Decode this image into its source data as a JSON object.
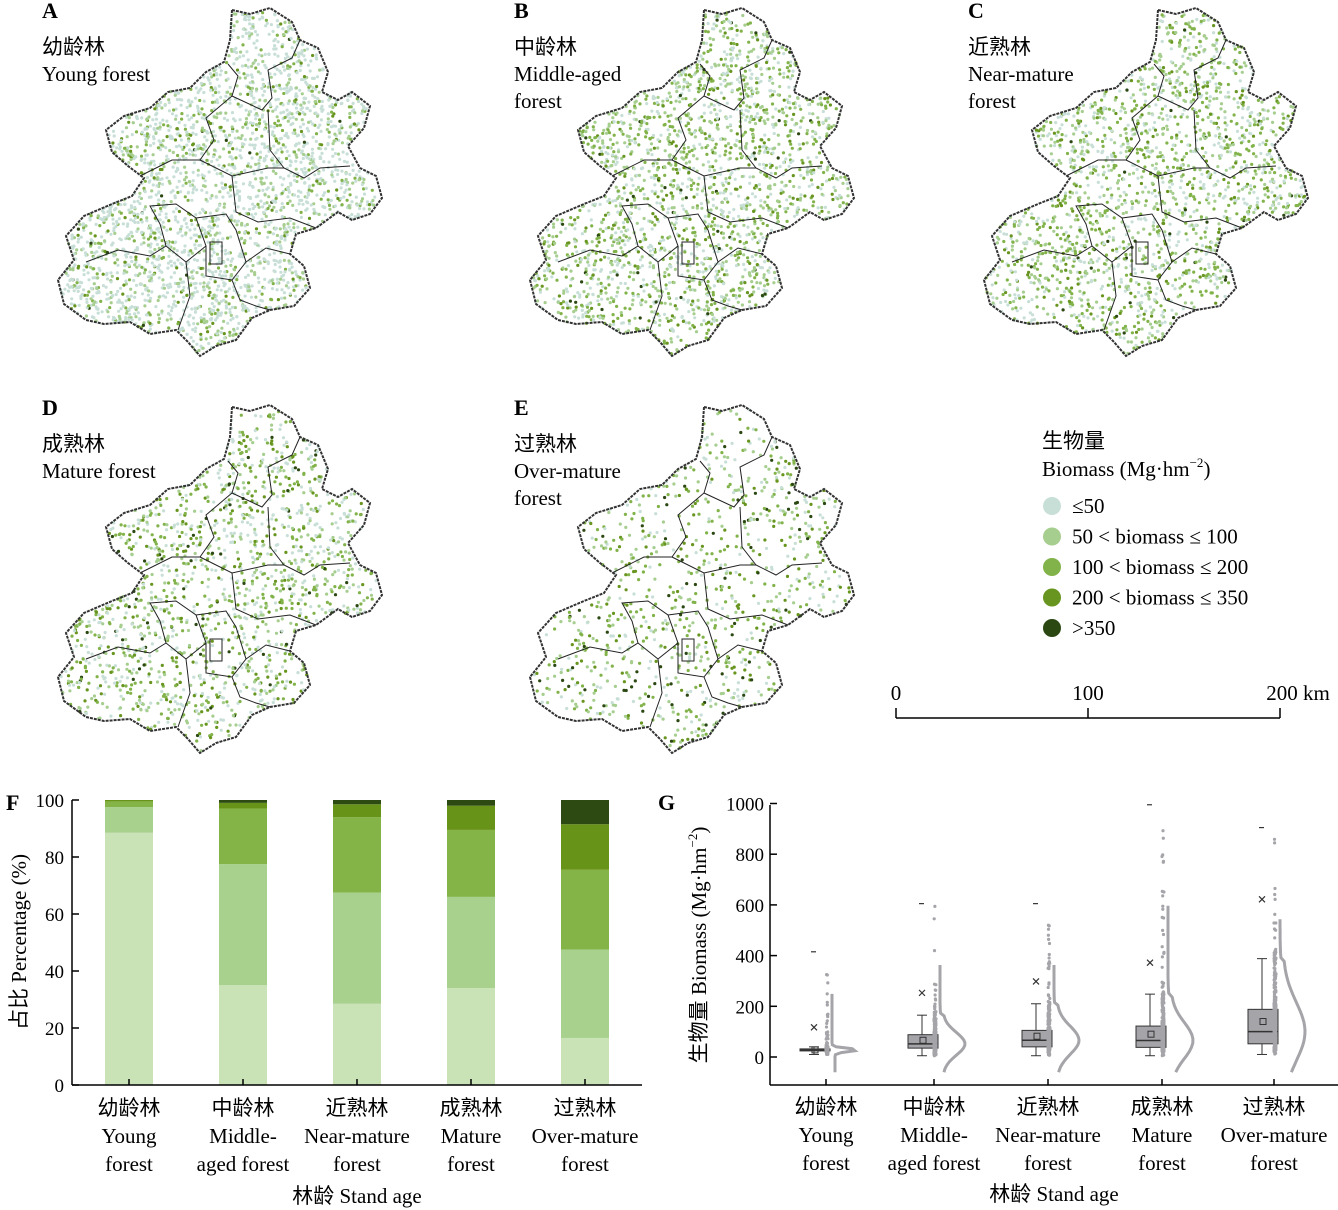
{
  "colors": {
    "c1": "#c8dfd7",
    "c2": "#a6ce8f",
    "c3": "#82b34a",
    "c4": "#67951f",
    "c5": "#2b4712",
    "bar1": "#c9e3b6",
    "bar2": "#a8d18e",
    "bar3": "#84b447",
    "bar4": "#679418",
    "bar5": "#2c4a11",
    "box": "#a5a4a9",
    "boxEdge": "#333333"
  },
  "maps": [
    {
      "letter": "A",
      "cn": "幼龄林",
      "en1": "Young forest",
      "en2": ""
    },
    {
      "letter": "B",
      "cn": "中龄林",
      "en1": "Middle-aged",
      "en2": "forest"
    },
    {
      "letter": "C",
      "cn": "近熟林",
      "en1": "Near-mature",
      "en2": "forest"
    },
    {
      "letter": "D",
      "cn": "成熟林",
      "en1": "Mature forest",
      "en2": ""
    },
    {
      "letter": "E",
      "cn": "过熟林",
      "en1": "Over-mature",
      "en2": "forest"
    }
  ],
  "legend": {
    "title_cn": "生物量",
    "title_en": "Biomass (Mg·hm",
    "title_sup": "−2",
    "title_close": ")",
    "items": [
      "≤50",
      "50 <  biomass  ≤ 100",
      "100 <  biomass  ≤ 200",
      "200 < biomass  ≤ 350",
      ">350"
    ]
  },
  "scalebar": {
    "labels": [
      "0",
      "100",
      "200 km"
    ]
  },
  "chart_data": [
    {
      "panel": "F",
      "type": "bar",
      "stacked": true,
      "categories": [
        {
          "cn": "幼龄林",
          "en1": "Young",
          "en2": "forest"
        },
        {
          "cn": "中龄林",
          "en1": "Middle-",
          "en2": "aged forest"
        },
        {
          "cn": "近熟林",
          "en1": "Near-mature",
          "en2": "forest"
        },
        {
          "cn": "成熟林",
          "en1": "Mature",
          "en2": "forest"
        },
        {
          "cn": "过熟林",
          "en1": "Over-mature",
          "en2": "forest"
        }
      ],
      "series": [
        {
          "values": [
            88.5,
            35.0,
            28.5,
            34.0,
            16.5
          ]
        },
        {
          "values": [
            9.0,
            42.5,
            39.0,
            32.0,
            31.0
          ]
        },
        {
          "values": [
            2.0,
            19.5,
            26.5,
            23.5,
            28.0
          ]
        },
        {
          "values": [
            0.5,
            2.0,
            4.5,
            8.5,
            16.0
          ]
        },
        {
          "values": [
            0.0,
            1.0,
            1.5,
            2.0,
            8.5
          ]
        }
      ],
      "ylim": [
        0,
        100
      ],
      "yticks": [
        0,
        20,
        40,
        60,
        80,
        100
      ],
      "ylabel": "占比 Percentage (%)",
      "xlabel": "林龄 Stand age"
    },
    {
      "panel": "G",
      "type": "box",
      "categories": [
        {
          "cn": "幼龄林",
          "en1": "Young",
          "en2": "forest"
        },
        {
          "cn": "中龄林",
          "en1": "Middle-",
          "en2": "aged forest"
        },
        {
          "cn": "近熟林",
          "en1": "Near-mature",
          "en2": "forest"
        },
        {
          "cn": "成熟林",
          "en1": "Mature",
          "en2": "forest"
        },
        {
          "cn": "过熟林",
          "en1": "Over-mature",
          "en2": "forest"
        }
      ],
      "boxes": [
        {
          "q1": 24,
          "median": 28,
          "q3": 32,
          "mean": 28,
          "whisker_low": 10,
          "whisker_high": 40,
          "max": 415,
          "p99": 117
        },
        {
          "q1": 35,
          "median": 52,
          "q3": 88,
          "mean": 66,
          "whisker_low": 5,
          "whisker_high": 165,
          "max": 605,
          "p99": 253
        },
        {
          "q1": 40,
          "median": 66,
          "q3": 105,
          "mean": 82,
          "whisker_low": 5,
          "whisker_high": 210,
          "max": 605,
          "p99": 298
        },
        {
          "q1": 38,
          "median": 65,
          "q3": 122,
          "mean": 90,
          "whisker_low": 5,
          "whisker_high": 248,
          "max": 995,
          "p99": 372
        },
        {
          "q1": 52,
          "median": 100,
          "q3": 188,
          "mean": 140,
          "whisker_low": 10,
          "whisker_high": 388,
          "max": 905,
          "p99": 622
        }
      ],
      "ylim": [
        -100,
        1000
      ],
      "yticks": [
        0,
        200,
        400,
        600,
        800,
        1000
      ],
      "ylabel_main": "生物量 Biomass (Mg·hm",
      "ylabel_sup": "−2",
      "ylabel_close": ")",
      "xlabel": "林龄 Stand age"
    }
  ]
}
